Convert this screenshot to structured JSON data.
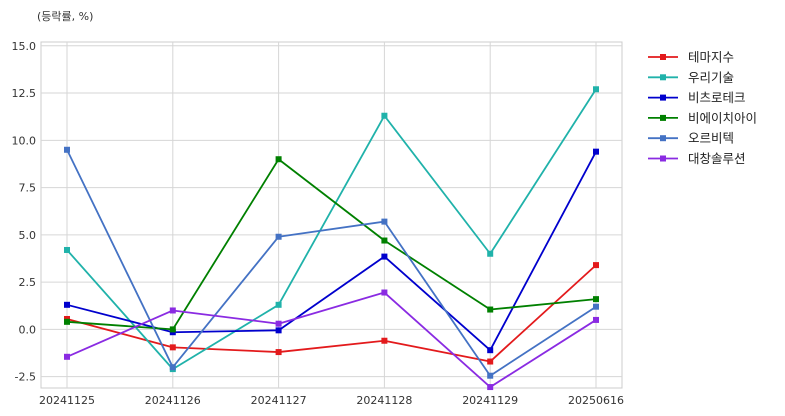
{
  "chart_data": {
    "type": "line",
    "ylabel": "(등락률, %)",
    "categories": [
      "20241125",
      "20241126",
      "20241127",
      "20241128",
      "20241129",
      "20250616"
    ],
    "ylim": [
      -3.1,
      15.2
    ],
    "yticks": [
      -2.5,
      0.0,
      2.5,
      5.0,
      7.5,
      10.0,
      12.5,
      15.0
    ],
    "ytick_labels": [
      "-2.5",
      "0.0",
      "2.5",
      "5.0",
      "7.5",
      "10.0",
      "12.5",
      "15.0"
    ],
    "grid": true,
    "legend_position": "outside-right-top",
    "series": [
      {
        "name": "테마지수",
        "color": "#e31a1c",
        "values": [
          0.55,
          -0.95,
          -1.2,
          -0.6,
          -1.7,
          3.4
        ]
      },
      {
        "name": "우리기술",
        "color": "#20b2aa",
        "values": [
          4.2,
          -2.1,
          1.3,
          11.3,
          4.0,
          12.7
        ]
      },
      {
        "name": "비츠로테크",
        "color": "#0000cd",
        "values": [
          1.3,
          -0.15,
          -0.05,
          3.85,
          -1.1,
          9.4
        ]
      },
      {
        "name": "비에이치아이",
        "color": "#008000",
        "values": [
          0.4,
          0.0,
          9.0,
          4.7,
          1.05,
          1.6
        ]
      },
      {
        "name": "오르비텍",
        "color": "#4472c4",
        "values": [
          9.5,
          -2.0,
          4.9,
          5.7,
          -2.45,
          1.2
        ]
      },
      {
        "name": "대창솔루션",
        "color": "#8a2be2",
        "values": [
          -1.45,
          1.0,
          0.3,
          1.95,
          -3.05,
          0.5
        ]
      }
    ]
  }
}
